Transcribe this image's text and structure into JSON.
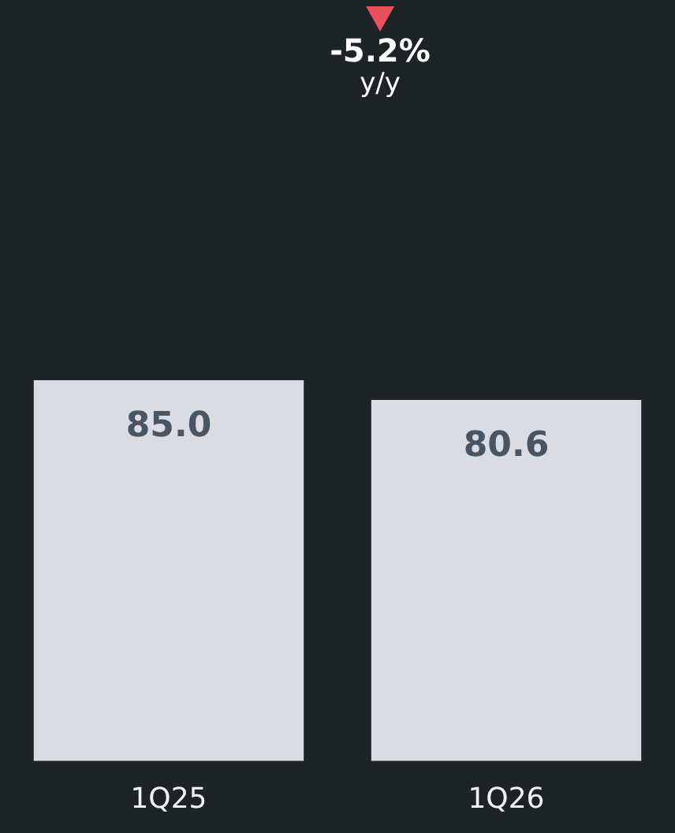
{
  "chart_data": {
    "type": "bar",
    "categories": [
      "1Q25",
      "1Q26"
    ],
    "values": [
      85.0,
      80.6
    ],
    "color": "#d9dde3",
    "value_labels": [
      "85.0",
      "80.6"
    ],
    "annotations": [
      "-5.2%",
      "y/y"
    ]
  }
}
